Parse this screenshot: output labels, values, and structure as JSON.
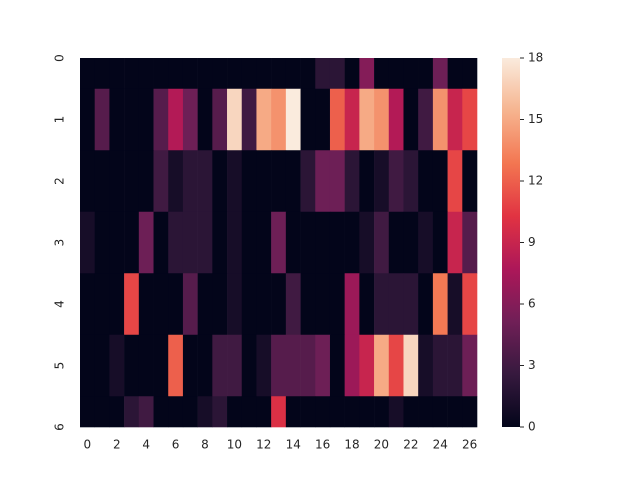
{
  "chart_data": {
    "type": "heatmap",
    "z": [
      [
        0,
        0,
        0,
        0,
        0,
        0,
        0,
        0,
        0,
        0,
        0,
        0,
        0,
        0,
        0,
        0,
        2,
        2,
        0,
        6,
        0,
        0,
        0,
        0,
        5,
        0,
        0
      ],
      [
        0,
        4,
        0,
        0,
        0,
        4,
        8,
        5,
        0,
        4,
        17,
        3,
        15,
        14,
        18,
        0,
        0,
        12,
        9,
        15,
        14,
        8,
        0,
        3,
        14,
        9,
        11
      ],
      [
        0,
        0,
        0,
        0,
        0,
        3,
        1,
        2,
        2,
        0,
        1,
        0,
        0,
        0,
        0,
        2,
        5,
        5,
        2,
        0,
        1,
        3,
        2,
        0,
        0,
        11,
        0
      ],
      [
        1,
        0,
        0,
        0,
        5,
        0,
        2,
        2,
        2,
        0,
        1,
        0,
        0,
        5,
        0,
        0,
        0,
        0,
        0,
        1,
        3,
        0,
        0,
        1,
        0,
        9,
        4
      ],
      [
        0,
        0,
        0,
        11,
        0,
        0,
        0,
        4,
        0,
        0,
        1,
        0,
        0,
        0,
        3,
        0,
        0,
        0,
        7,
        0,
        2,
        2,
        2,
        0,
        13,
        1,
        11
      ],
      [
        0,
        0,
        1,
        0,
        0,
        0,
        12,
        0,
        0,
        3,
        3,
        0,
        1,
        4,
        4,
        4,
        5,
        0,
        7,
        9,
        15,
        11,
        17,
        1,
        2,
        2,
        5
      ],
      [
        0,
        0,
        0,
        2,
        3,
        0,
        0,
        0,
        1,
        2,
        0,
        0,
        0,
        10,
        0,
        0,
        0,
        0,
        0,
        0,
        0,
        1,
        0,
        0,
        0,
        0,
        0
      ]
    ],
    "xlim": [
      -0.5,
      26.5
    ],
    "ylim": [
      6,
      0
    ],
    "xticks": [
      0,
      2,
      4,
      6,
      8,
      10,
      12,
      14,
      16,
      18,
      20,
      22,
      24,
      26
    ],
    "yticks": [
      0,
      1,
      2,
      3,
      4,
      5,
      6
    ],
    "clim": [
      0,
      18
    ],
    "cticks": [
      0,
      3,
      6,
      9,
      12,
      15,
      18
    ],
    "colormap": [
      "#03051a",
      "#36193e",
      "#701f57",
      "#ad1759",
      "#e13342",
      "#f37651",
      "#f6b48f",
      "#faebdd"
    ]
  }
}
